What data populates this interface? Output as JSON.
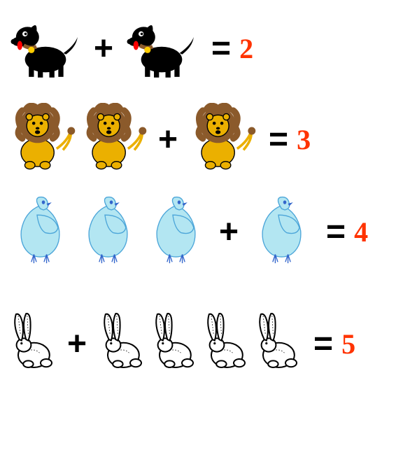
{
  "colors": {
    "result": "#ff3300",
    "operator": "#000000",
    "dog_body": "#000000",
    "dog_collar": "#8b5a2b",
    "dog_tag": "#ffcc00",
    "dog_tongue": "#ff0000",
    "lion_mane": "#8b5a2b",
    "lion_body": "#ebb000",
    "lion_outline": "#000000",
    "bird_body": "#b3e6f2",
    "bird_outline": "#4da6d9",
    "bird_beak": "#3366cc",
    "rabbit_outline": "#000000",
    "rabbit_body": "#ffffff"
  },
  "operators": {
    "plus": "+",
    "equals": "="
  },
  "rows": [
    {
      "animal": "dog",
      "left_count": 1,
      "right_count": 1,
      "result": "2",
      "size": 110
    },
    {
      "animal": "lion",
      "left_count": 2,
      "right_count": 1,
      "result": "3",
      "size": 100
    },
    {
      "animal": "bird",
      "left_count": 3,
      "right_count": 1,
      "result": "4",
      "size": 95
    },
    {
      "animal": "rabbit",
      "left_count": 1,
      "right_count": 4,
      "result": "5",
      "size": 90
    }
  ]
}
